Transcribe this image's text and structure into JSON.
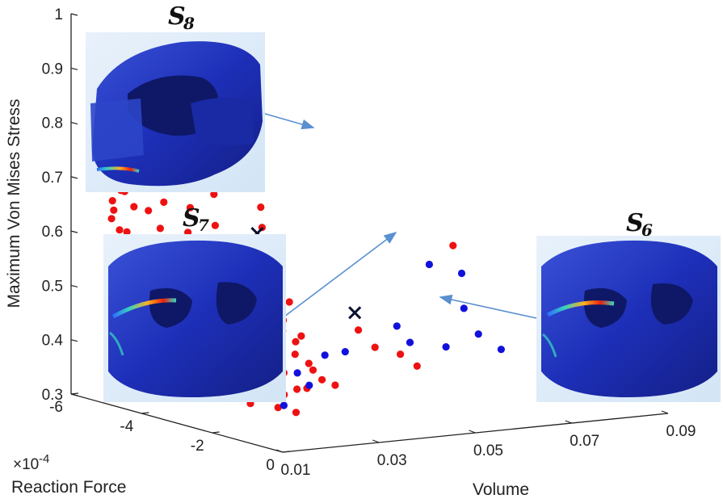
{
  "chart_data": {
    "type": "scatter",
    "title": "",
    "xlabel": "Volume",
    "ylabel": "Reaction Force",
    "zlabel": "Maximum Von Mises Stress",
    "y_scale_label": "×10",
    "y_scale_exponent": "-4",
    "xlim": [
      0.01,
      0.09
    ],
    "ylim": [
      -6,
      0
    ],
    "zlim": [
      0.3,
      1
    ],
    "x_ticks": [
      "0.01",
      "0.03",
      "0.05",
      "0.07",
      "0.09"
    ],
    "y_ticks": [
      "-6",
      "-4",
      "-2",
      "0"
    ],
    "z_ticks": [
      "0.3",
      "0.4",
      "0.5",
      "0.6",
      "0.7",
      "0.8",
      "0.9",
      "1"
    ],
    "grid": false,
    "series": [
      {
        "color": "#ee1111",
        "points": [
          [
            0.028,
            -4.6,
            0.94
          ],
          [
            0.029,
            -4.4,
            0.92
          ],
          [
            0.027,
            -4.7,
            0.9
          ],
          [
            0.03,
            -4.2,
            0.88
          ],
          [
            0.028,
            -4.8,
            0.87
          ],
          [
            0.029,
            -4.9,
            0.86
          ],
          [
            0.026,
            -5.0,
            0.85
          ],
          [
            0.03,
            -4.5,
            0.84
          ],
          [
            0.027,
            -4.3,
            0.83
          ],
          [
            0.029,
            -4.6,
            0.82
          ],
          [
            0.031,
            -4.1,
            0.8
          ],
          [
            0.026,
            -4.9,
            0.81
          ],
          [
            0.028,
            -4.2,
            0.79
          ],
          [
            0.03,
            -4.8,
            0.78
          ],
          [
            0.032,
            -4.0,
            0.77
          ],
          [
            0.027,
            -4.4,
            0.76
          ],
          [
            0.029,
            -4.7,
            0.75
          ],
          [
            0.031,
            -4.5,
            0.74
          ],
          [
            0.028,
            -5.1,
            0.73
          ],
          [
            0.033,
            -4.2,
            0.72
          ],
          [
            0.016,
            -5.0,
            0.86
          ],
          [
            0.018,
            -5.2,
            0.85
          ],
          [
            0.014,
            -5.3,
            0.83
          ],
          [
            0.017,
            -5.1,
            0.82
          ],
          [
            0.013,
            -5.4,
            0.81
          ],
          [
            0.015,
            -5.2,
            0.79
          ],
          [
            0.012,
            -5.5,
            0.78
          ],
          [
            0.016,
            -5.3,
            0.77
          ],
          [
            0.014,
            -5.1,
            0.76
          ],
          [
            0.013,
            -5.3,
            0.74
          ],
          [
            0.015,
            -5.5,
            0.73
          ],
          [
            0.012,
            -5.2,
            0.72
          ],
          [
            0.014,
            -5.4,
            0.7
          ],
          [
            0.013,
            -5.0,
            0.69
          ],
          [
            0.016,
            -5.3,
            0.68
          ],
          [
            0.012,
            -5.1,
            0.67
          ],
          [
            0.015,
            -4.9,
            0.66
          ],
          [
            0.013,
            -5.2,
            0.65
          ],
          [
            0.014,
            -5.4,
            0.63
          ],
          [
            0.012,
            -4.9,
            0.62
          ],
          [
            0.015,
            -5.1,
            0.61
          ],
          [
            0.013,
            -4.8,
            0.6
          ],
          [
            0.014,
            -5.0,
            0.58
          ],
          [
            0.012,
            -4.7,
            0.57
          ],
          [
            0.016,
            -4.9,
            0.56
          ],
          [
            0.013,
            -4.6,
            0.55
          ],
          [
            0.015,
            -4.8,
            0.53
          ],
          [
            0.014,
            -4.5,
            0.52
          ],
          [
            0.016,
            -4.6,
            0.51
          ],
          [
            0.015,
            -4.3,
            0.5
          ],
          [
            0.017,
            -4.5,
            0.49
          ],
          [
            0.016,
            -4.2,
            0.48
          ],
          [
            0.018,
            -4.4,
            0.47
          ],
          [
            0.017,
            -4.1,
            0.46
          ],
          [
            0.019,
            -4.2,
            0.45
          ],
          [
            0.018,
            -3.9,
            0.44
          ],
          [
            0.02,
            -4.0,
            0.43
          ],
          [
            0.019,
            -3.8,
            0.42
          ],
          [
            0.021,
            -3.9,
            0.41
          ],
          [
            0.02,
            -3.6,
            0.4
          ],
          [
            0.022,
            -3.7,
            0.39
          ],
          [
            0.021,
            -3.5,
            0.38
          ],
          [
            0.023,
            -3.6,
            0.37
          ],
          [
            0.022,
            -3.3,
            0.36
          ],
          [
            0.024,
            -3.4,
            0.35
          ],
          [
            0.023,
            -3.2,
            0.34
          ],
          [
            0.025,
            -3.3,
            0.33
          ],
          [
            0.026,
            -3.1,
            0.32
          ],
          [
            0.022,
            -4.6,
            0.78
          ],
          [
            0.024,
            -4.3,
            0.74
          ],
          [
            0.021,
            -4.8,
            0.71
          ],
          [
            0.025,
            -4.0,
            0.69
          ],
          [
            0.023,
            -4.4,
            0.66
          ],
          [
            0.026,
            -4.1,
            0.63
          ],
          [
            0.024,
            -4.6,
            0.61
          ],
          [
            0.027,
            -3.9,
            0.58
          ],
          [
            0.025,
            -4.2,
            0.56
          ],
          [
            0.028,
            -3.8,
            0.53
          ],
          [
            0.026,
            -4.0,
            0.51
          ],
          [
            0.029,
            -3.6,
            0.49
          ],
          [
            0.027,
            -3.9,
            0.47
          ],
          [
            0.03,
            -3.5,
            0.45
          ],
          [
            0.028,
            -3.7,
            0.43
          ],
          [
            0.031,
            -3.4,
            0.41
          ],
          [
            0.029,
            -3.5,
            0.39
          ],
          [
            0.032,
            -3.2,
            0.37
          ],
          [
            0.03,
            -3.3,
            0.35
          ],
          [
            0.033,
            -3.1,
            0.33
          ],
          [
            0.031,
            -3.0,
            0.31
          ],
          [
            0.034,
            -2.9,
            0.3
          ],
          [
            0.032,
            -4.1,
            0.7
          ],
          [
            0.034,
            -3.9,
            0.66
          ],
          [
            0.035,
            -4.0,
            0.62
          ],
          [
            0.033,
            -3.8,
            0.58
          ],
          [
            0.036,
            -3.7,
            0.55
          ],
          [
            0.034,
            -3.6,
            0.52
          ],
          [
            0.037,
            -3.5,
            0.49
          ],
          [
            0.035,
            -3.4,
            0.46
          ],
          [
            0.038,
            -3.3,
            0.43
          ],
          [
            0.036,
            -3.2,
            0.4
          ],
          [
            0.039,
            -3.1,
            0.37
          ],
          [
            0.037,
            -3.0,
            0.34
          ],
          [
            0.018,
            -4.9,
            0.65
          ],
          [
            0.019,
            -4.7,
            0.62
          ],
          [
            0.02,
            -4.9,
            0.59
          ],
          [
            0.021,
            -4.6,
            0.56
          ],
          [
            0.019,
            -4.5,
            0.53
          ],
          [
            0.022,
            -4.4,
            0.5
          ],
          [
            0.02,
            -4.3,
            0.47
          ],
          [
            0.023,
            -4.1,
            0.44
          ],
          [
            0.017,
            -5.2,
            0.84
          ],
          [
            0.019,
            -5.0,
            0.8
          ],
          [
            0.018,
            -4.8,
            0.76
          ],
          [
            0.02,
            -5.0,
            0.72
          ],
          [
            0.017,
            -4.7,
            0.7
          ],
          [
            0.019,
            -4.6,
            0.67
          ],
          [
            0.029,
            -2.6,
            0.46
          ],
          [
            0.031,
            -2.5,
            0.44
          ],
          [
            0.027,
            -2.8,
            0.41
          ],
          [
            0.033,
            -2.4,
            0.4
          ],
          [
            0.03,
            -2.7,
            0.38
          ],
          [
            0.035,
            -2.3,
            0.37
          ],
          [
            0.032,
            -2.6,
            0.35
          ],
          [
            0.037,
            -2.2,
            0.36
          ],
          [
            0.052,
            -2.4,
            0.4
          ],
          [
            0.054,
            -2.2,
            0.38
          ],
          [
            0.06,
            -2.0,
            0.6
          ],
          [
            0.044,
            -2.5,
            0.45
          ],
          [
            0.046,
            -2.3,
            0.42
          ]
        ]
      },
      {
        "color": "#1111dd",
        "points": [
          [
            0.014,
            -5.5,
            0.85
          ],
          [
            0.03,
            -4.6,
            0.82
          ],
          [
            0.031,
            -4.7,
            0.73
          ],
          [
            0.023,
            -4.1,
            0.5
          ],
          [
            0.026,
            -3.9,
            0.52
          ],
          [
            0.03,
            -3.7,
            0.48
          ],
          [
            0.028,
            -3.4,
            0.45
          ],
          [
            0.033,
            -3.3,
            0.43
          ],
          [
            0.026,
            -3.1,
            0.4
          ],
          [
            0.035,
            -3.0,
            0.37
          ],
          [
            0.036,
            -2.8,
            0.35
          ],
          [
            0.03,
            -2.7,
            0.32
          ],
          [
            0.04,
            -2.9,
            0.4
          ],
          [
            0.042,
            -2.6,
            0.41
          ],
          [
            0.058,
            -2.4,
            0.56
          ],
          [
            0.064,
            -2.3,
            0.54
          ],
          [
            0.063,
            -2.1,
            0.48
          ],
          [
            0.052,
            -2.5,
            0.45
          ],
          [
            0.054,
            -2.4,
            0.42
          ],
          [
            0.06,
            -2.2,
            0.41
          ],
          [
            0.066,
            -2.1,
            0.43
          ],
          [
            0.07,
            -2.0,
            0.4
          ]
        ]
      }
    ],
    "highlighted": [
      {
        "label": "S",
        "subscript": "8",
        "x": 0.017,
        "y": -5.0,
        "z": 0.79
      },
      {
        "label": "S",
        "subscript": "7",
        "x": 0.034,
        "y": -4.0,
        "z": 0.61
      },
      {
        "label": "S",
        "subscript": "6",
        "x": 0.044,
        "y": -2.6,
        "z": 0.48
      }
    ]
  }
}
